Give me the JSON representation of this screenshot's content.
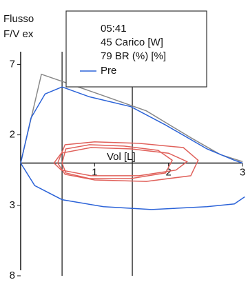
{
  "chart_data": {
    "type": "line",
    "title": "Flusso",
    "subtitle": "F/V ex",
    "x_label": "Vol [L]",
    "legend_texts": [
      "05:41",
      "45 Carico [W]",
      "79 BR (%) [%]"
    ],
    "xlim": [
      0,
      3
    ],
    "ylim": [
      -8,
      7.9
    ],
    "xticks": [
      1,
      2,
      3
    ],
    "yticks": [
      7,
      2,
      {
        "value": -3,
        "label": "3"
      },
      {
        "value": -8,
        "label": "8"
      }
    ],
    "vertical_lines": [
      0.56,
      1.51
    ],
    "series": [
      {
        "color": "#888888",
        "x": [
          0,
          0.28,
          1.0,
          1.7,
          2.3,
          2.7,
          3.0
        ],
        "values": [
          0,
          6.3,
          5.0,
          3.7,
          1.8,
          0.6,
          0.1
        ]
      },
      {
        "name": "Pre",
        "color": "#2a62d8",
        "x": [
          0,
          0.14,
          0.33,
          0.56,
          0.93,
          1.49,
          1.96,
          2.52,
          2.89,
          3.0
        ],
        "values": [
          0,
          3.2,
          4.9,
          5.4,
          4.7,
          4.0,
          2.7,
          1.0,
          0.2,
          0
        ]
      },
      {
        "color": "#2a62d8",
        "x": [
          0,
          0.19,
          0.56,
          1.12,
          1.77,
          2.52,
          2.89,
          3.03
        ],
        "values": [
          0,
          -1.6,
          -2.6,
          -3.1,
          -3.3,
          -3.1,
          -2.9,
          -2.4
        ]
      },
      {
        "color": "#e0605a",
        "x": [
          0.56,
          0.61,
          0.93,
          1.4,
          1.86,
          2.05,
          1.96,
          1.49,
          0.93,
          0.61,
          0.56
        ],
        "values": [
          0,
          1.0,
          1.3,
          1.2,
          0.9,
          0.2,
          -0.7,
          -1.1,
          -1.1,
          -0.7,
          0
        ]
      },
      {
        "color": "#e0605a",
        "x": [
          0.5,
          0.6,
          1.0,
          1.6,
          2.2,
          2.4,
          2.3,
          1.7,
          1.0,
          0.6,
          0.5
        ],
        "values": [
          0,
          1.3,
          1.5,
          1.4,
          1.1,
          0.2,
          -0.9,
          -1.3,
          -1.2,
          -0.8,
          0
        ]
      },
      {
        "color": "#e0605a",
        "x": [
          0.45,
          0.55,
          0.95,
          1.5,
          2.0,
          2.25,
          2.1,
          1.6,
          0.95,
          0.55,
          0.45
        ],
        "values": [
          0,
          0.7,
          1.1,
          1.0,
          0.7,
          0.1,
          -0.5,
          -0.9,
          -0.9,
          -0.5,
          0
        ]
      }
    ]
  }
}
